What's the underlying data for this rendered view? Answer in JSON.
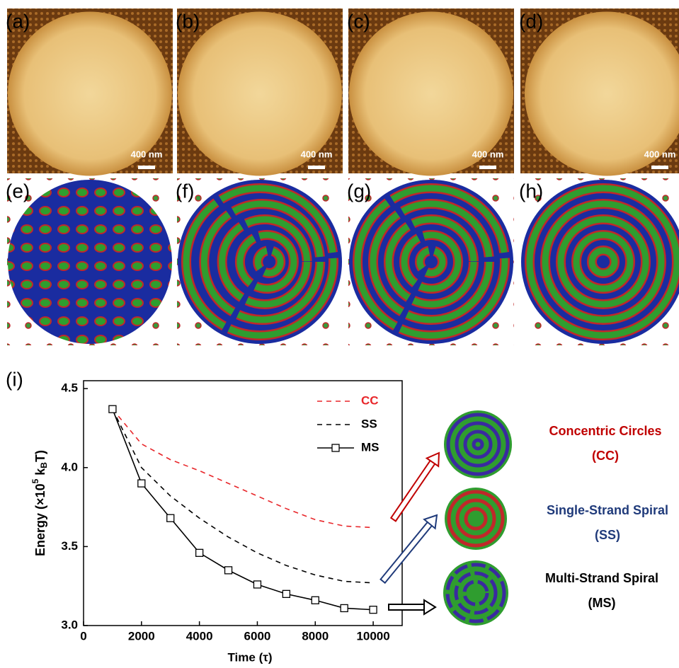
{
  "figure": {
    "afm_panels": [
      {
        "label": "(a)",
        "scale": "400 nm"
      },
      {
        "label": "(b)",
        "scale": "400 nm"
      },
      {
        "label": "(c)",
        "scale": "400 nm"
      },
      {
        "label": "(d)",
        "scale": "400 nm"
      }
    ],
    "sim_panels": [
      {
        "label": "(e)"
      },
      {
        "label": "(f)"
      },
      {
        "label": "(g)"
      },
      {
        "label": "(h)"
      }
    ],
    "chart_label": "(i)",
    "structures": [
      {
        "name": "Concentric Circles",
        "abbr": "(CC)",
        "color": "#c00000"
      },
      {
        "name": "Single-Strand Spiral",
        "abbr": "(SS)",
        "color": "#1f3a7a"
      },
      {
        "name": "Multi-Strand Spiral",
        "abbr": "(MS)",
        "color": "#000000"
      }
    ]
  },
  "chart_data": {
    "type": "line",
    "x_label": "Time (τ)",
    "y_label": {
      "main": "Energy (×10",
      "sup": "5",
      "mid": " k",
      "sub": "B",
      "end": "T)"
    },
    "x": [
      1000,
      2000,
      3000,
      4000,
      5000,
      6000,
      7000,
      8000,
      9000,
      10000
    ],
    "series": [
      {
        "name": "CC",
        "color": "#e8262a",
        "dash": true,
        "markers": false,
        "values": [
          4.37,
          4.15,
          4.05,
          3.98,
          3.9,
          3.82,
          3.74,
          3.67,
          3.63,
          3.62
        ]
      },
      {
        "name": "SS",
        "color": "#000000",
        "dash": true,
        "markers": false,
        "values": [
          4.37,
          4.0,
          3.82,
          3.68,
          3.56,
          3.46,
          3.38,
          3.32,
          3.28,
          3.27
        ]
      },
      {
        "name": "MS",
        "color": "#000000",
        "dash": false,
        "markers": true,
        "values": [
          4.37,
          3.9,
          3.68,
          3.46,
          3.35,
          3.26,
          3.2,
          3.16,
          3.11,
          3.1
        ]
      }
    ],
    "xlim": [
      0,
      11000
    ],
    "ylim": [
      3.0,
      4.55
    ],
    "xticks": [
      0,
      2000,
      4000,
      6000,
      8000,
      10000
    ],
    "yticks": [
      {
        "value": 3.0,
        "label": "3.0"
      },
      {
        "value": 3.5,
        "label": "3.5"
      },
      {
        "value": 4.0,
        "label": "4.0"
      },
      {
        "value": 4.5,
        "label": "4.5"
      }
    ]
  }
}
